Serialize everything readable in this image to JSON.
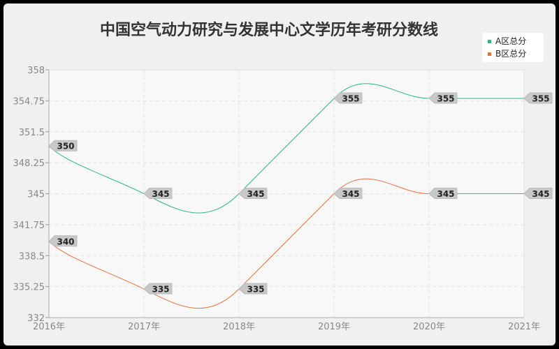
{
  "chart_data": {
    "type": "line",
    "title": "中国空气动力研究与发展中心文学历年考研分数线",
    "categories": [
      "2016年",
      "2017年",
      "2018年",
      "2019年",
      "2020年",
      "2021年"
    ],
    "yticks": [
      "332",
      "335.25",
      "338.5",
      "341.75",
      "345",
      "348.25",
      "351.5",
      "354.75",
      "358"
    ],
    "ylim": [
      332,
      358
    ],
    "grid": true,
    "legend_position": "top-right",
    "series": [
      {
        "name": "A区总分",
        "color": "#2bb58a",
        "values": [
          350,
          345,
          345,
          355,
          355,
          355
        ]
      },
      {
        "name": "B区总分",
        "color": "#e8703e",
        "values": [
          340,
          335,
          335,
          345,
          345,
          345
        ]
      }
    ]
  }
}
